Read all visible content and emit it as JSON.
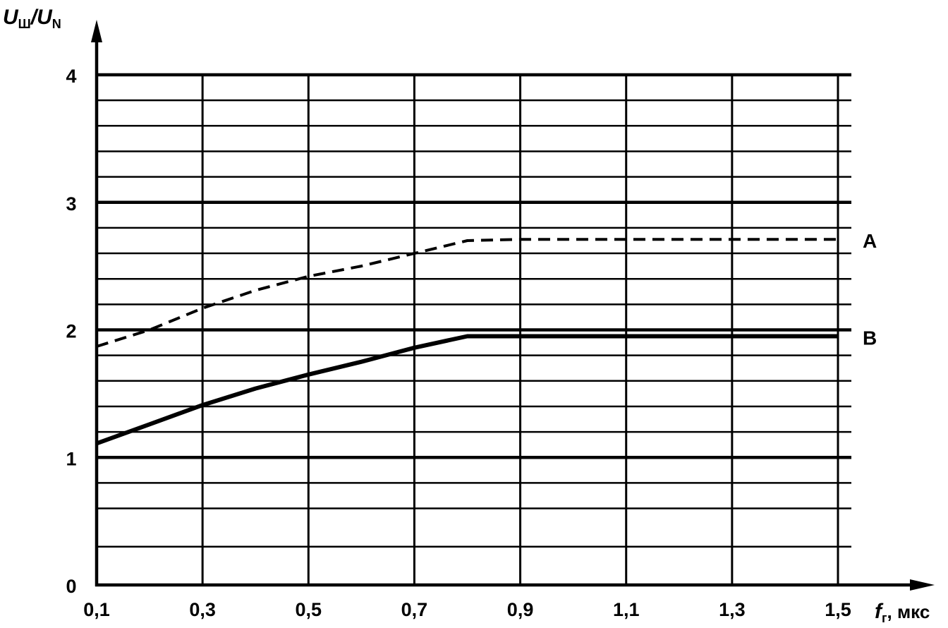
{
  "chart_data": {
    "type": "line",
    "title": "",
    "ylabel": {
      "main": "U",
      "sub": "Ш",
      "sep": "/",
      "main2": "U",
      "sub2": "N"
    },
    "xlabel": {
      "main": "f",
      "sub": "г",
      "unit": ", мкс"
    },
    "xlim": [
      0.1,
      1.5
    ],
    "ylim": [
      0,
      4
    ],
    "x_ticks": [
      {
        "value": 0.1,
        "label": "0,1"
      },
      {
        "value": 0.3,
        "label": "0,3"
      },
      {
        "value": 0.5,
        "label": "0,5"
      },
      {
        "value": 0.7,
        "label": "0,7"
      },
      {
        "value": 0.9,
        "label": "0,9"
      },
      {
        "value": 1.1,
        "label": "1,1"
      },
      {
        "value": 1.3,
        "label": "1,3"
      },
      {
        "value": 1.5,
        "label": "1,5"
      }
    ],
    "y_ticks": [
      {
        "value": 0,
        "label": "0"
      },
      {
        "value": 1,
        "label": "1"
      },
      {
        "value": 2,
        "label": "2"
      },
      {
        "value": 3,
        "label": "3"
      },
      {
        "value": 4,
        "label": "4"
      }
    ],
    "grid": true,
    "y_minor_grid": [
      0.3,
      0.6,
      0.8,
      1.2,
      1.4,
      1.6,
      1.8,
      2.2,
      2.4,
      2.6,
      2.8,
      3.2,
      3.4,
      3.6,
      3.8
    ],
    "series": [
      {
        "name": "A",
        "style": "dashed",
        "x": [
          0.1,
          0.2,
          0.3,
          0.4,
          0.5,
          0.6,
          0.7,
          0.8,
          0.9,
          1.0,
          1.1,
          1.2,
          1.3,
          1.4,
          1.5
        ],
        "values": [
          1.87,
          2.0,
          2.17,
          2.31,
          2.42,
          2.5,
          2.6,
          2.7,
          2.71,
          2.71,
          2.71,
          2.71,
          2.71,
          2.71,
          2.71
        ]
      },
      {
        "name": "B",
        "style": "solid",
        "x": [
          0.1,
          0.2,
          0.3,
          0.4,
          0.5,
          0.6,
          0.7,
          0.8,
          0.9,
          1.0,
          1.1,
          1.2,
          1.3,
          1.4,
          1.5
        ],
        "values": [
          1.11,
          1.26,
          1.41,
          1.54,
          1.65,
          1.75,
          1.86,
          1.95,
          1.95,
          1.95,
          1.95,
          1.95,
          1.95,
          1.95,
          1.95
        ]
      }
    ]
  }
}
